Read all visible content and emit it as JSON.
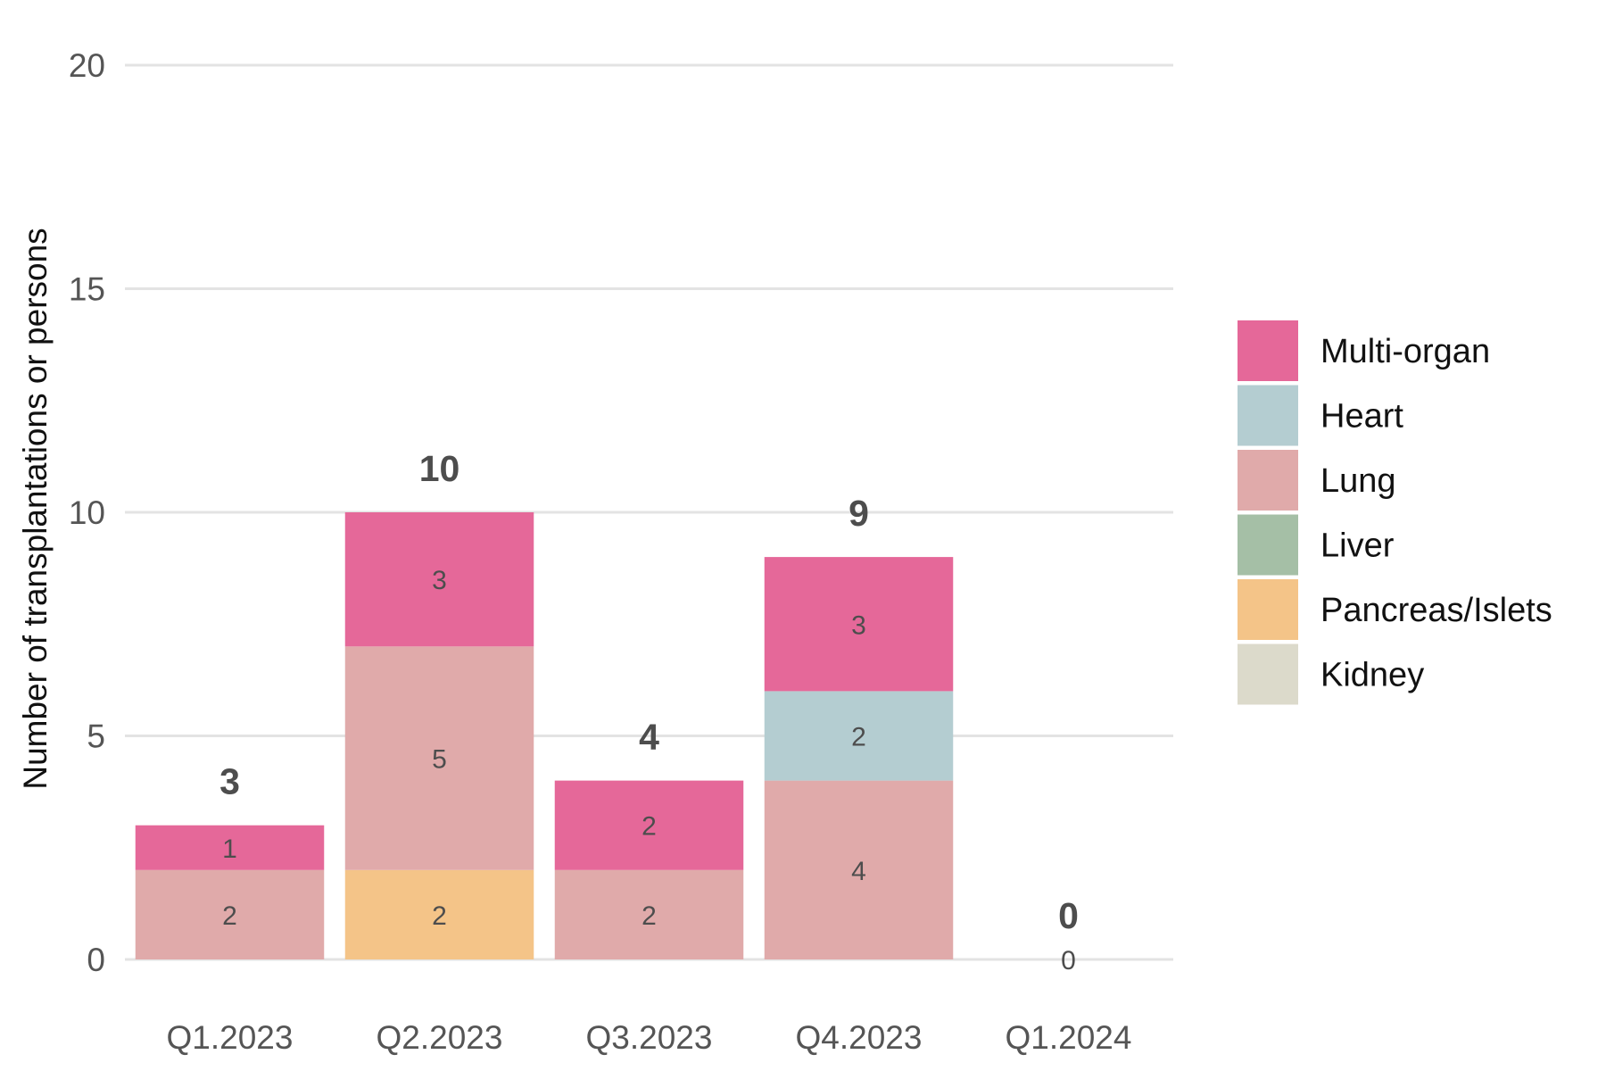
{
  "chart_data": {
    "type": "bar",
    "stacked": true,
    "title": "",
    "xlabel": "",
    "ylabel": "Number of transplantations or persons",
    "ylim": [
      0,
      20
    ],
    "yticks": [
      "0",
      "5",
      "10",
      "15",
      "20"
    ],
    "grid": "horizontal",
    "legend_position": "right",
    "categories": [
      "Q1.2023",
      "Q2.2023",
      "Q3.2023",
      "Q4.2023",
      "Q1.2024"
    ],
    "totals": [
      "3",
      "10",
      "4",
      "9",
      "0"
    ],
    "series": [
      {
        "name": "Kidney",
        "color": "#dcdacb",
        "values": [
          0,
          0,
          0,
          0,
          0
        ]
      },
      {
        "name": "Pancreas/Islets",
        "color": "#f4c488",
        "values": [
          0,
          2,
          0,
          0,
          0
        ]
      },
      {
        "name": "Liver",
        "color": "#a5bfa6",
        "values": [
          0,
          0,
          0,
          0,
          0
        ]
      },
      {
        "name": "Lung",
        "color": "#e0aaaa",
        "values": [
          2,
          5,
          2,
          4,
          0
        ]
      },
      {
        "name": "Heart",
        "color": "#b4cdd1",
        "values": [
          0,
          0,
          0,
          2,
          0
        ]
      },
      {
        "name": "Multi-organ",
        "color": "#e56899",
        "values": [
          1,
          3,
          2,
          3,
          0
        ]
      }
    ],
    "legend_order": [
      "Multi-organ",
      "Heart",
      "Lung",
      "Liver",
      "Pancreas/Islets",
      "Kidney"
    ],
    "zero_labels": [
      "",
      "",
      "",
      "",
      "0"
    ]
  }
}
